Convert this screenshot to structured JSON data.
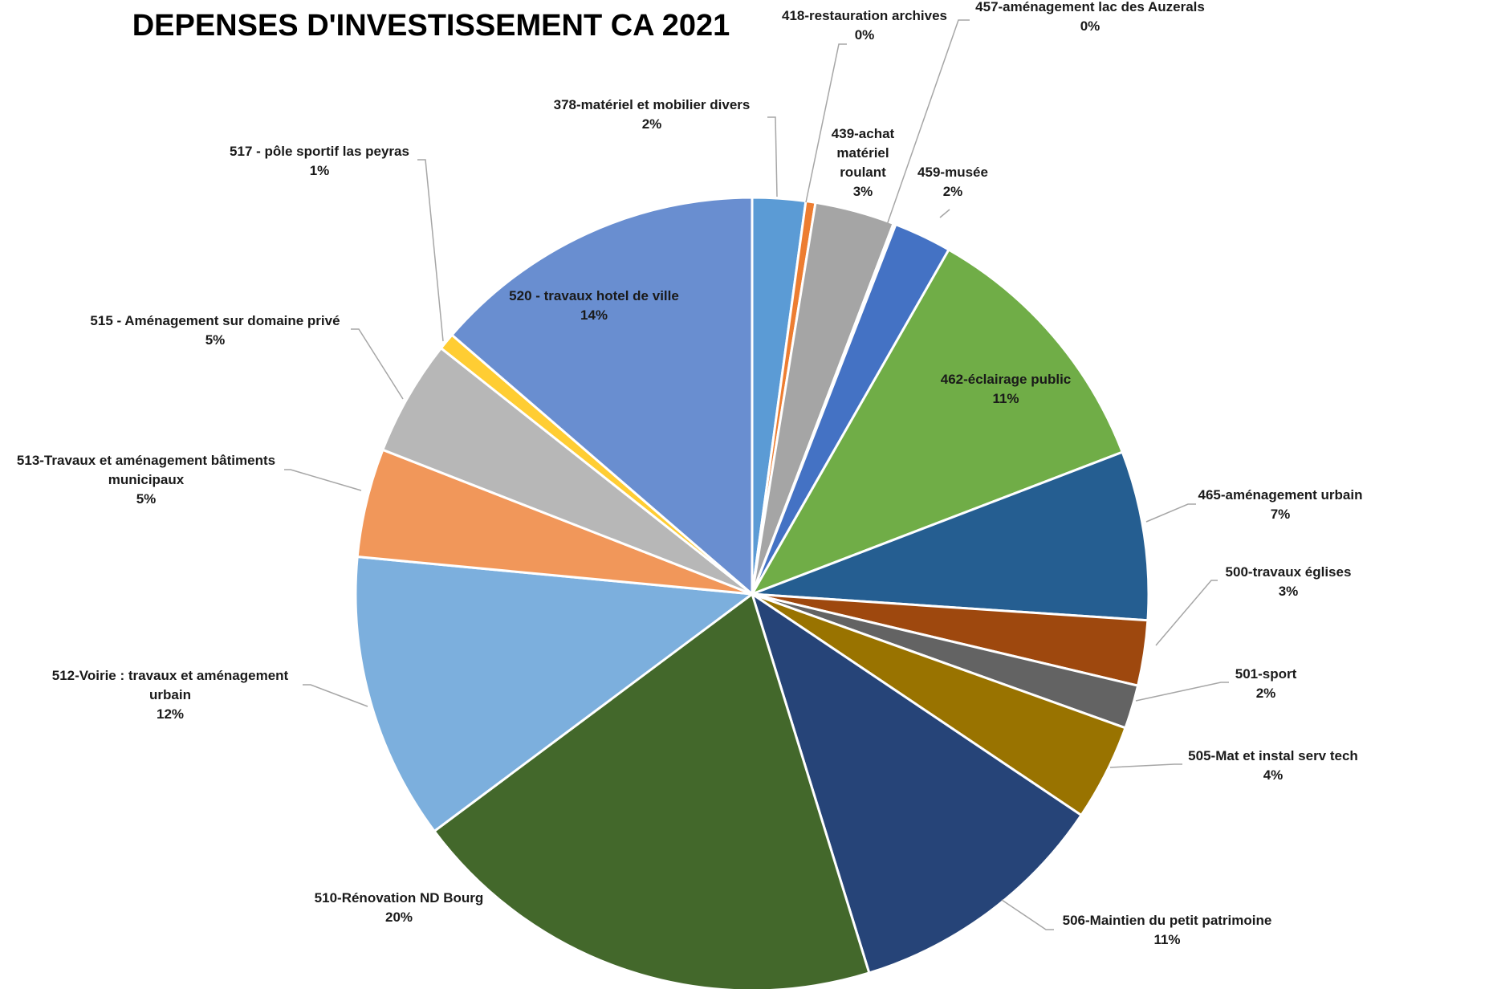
{
  "chart_data": {
    "type": "pie",
    "title": "DEPENSES D'INVESTISSEMENT CA 2021",
    "slices": [
      {
        "name": "378-matériel et mobilier divers",
        "value": 2.2,
        "label_pct": "2%",
        "color": "#5b9bd5"
      },
      {
        "name": "418-restauration archives",
        "value": 0.4,
        "label_pct": "0%",
        "color": "#ed7d31"
      },
      {
        "name": "439-achat matériel roulant",
        "value": 3.3,
        "label_pct": "3%",
        "color": "#a5a5a5"
      },
      {
        "name": "457-aménagement lac des Auzerals",
        "value": 0.1,
        "label_pct": "0%",
        "color": "#ffc000"
      },
      {
        "name": "459-musée",
        "value": 2.4,
        "label_pct": "2%",
        "color": "#4472c4"
      },
      {
        "name": "462-éclairage public",
        "value": 11.1,
        "label_pct": "11%",
        "color": "#70ad47"
      },
      {
        "name": "465-aménagement urbain",
        "value": 7.0,
        "label_pct": "7%",
        "color": "#255e91"
      },
      {
        "name": "500-travaux églises",
        "value": 2.7,
        "label_pct": "3%",
        "color": "#9e480e"
      },
      {
        "name": "501-sport",
        "value": 1.8,
        "label_pct": "2%",
        "color": "#636363"
      },
      {
        "name": "505-Mat et instal serv tech",
        "value": 4.0,
        "label_pct": "4%",
        "color": "#997300"
      },
      {
        "name": "506-Maintien du petit patrimoine",
        "value": 11.0,
        "label_pct": "11%",
        "color": "#264478"
      },
      {
        "name": "510-Rénovation ND Bourg",
        "value": 19.9,
        "label_pct": "20%",
        "color": "#43682b"
      },
      {
        "name": "512-Voirie : travaux et aménagement urbain",
        "value": 11.9,
        "label_pct": "12%",
        "color": "#7cafdd"
      },
      {
        "name": "513-Travaux et aménagement bâtiments municipaux",
        "value": 4.5,
        "label_pct": "5%",
        "color": "#f1975a"
      },
      {
        "name": "515 - Aménagement sur domaine privé",
        "value": 4.8,
        "label_pct": "5%",
        "color": "#b7b7b7"
      },
      {
        "name": "517 - pôle sportif las peyras",
        "value": 0.7,
        "label_pct": "1%",
        "color": "#ffcd33"
      },
      {
        "name": "520 - travaux hotel de ville",
        "value": 13.9,
        "label_pct": "14%",
        "color": "#698ed0"
      }
    ],
    "label_lines": [
      [
        "378-matériel et mobilier divers",
        "2%"
      ],
      [
        "418-restauration archives",
        "0%"
      ],
      [
        "439-achat",
        "matériel",
        "roulant",
        "3%"
      ],
      [
        "457-aménagement lac des Auzerals",
        "0%"
      ],
      [
        "459-musée",
        "2%"
      ],
      [
        "462-éclairage public",
        "11%"
      ],
      [
        "465-aménagement urbain",
        "7%"
      ],
      [
        "500-travaux églises",
        "3%"
      ],
      [
        "501-sport",
        "2%"
      ],
      [
        "505-Mat et instal serv tech",
        "4%"
      ],
      [
        "506-Maintien du petit patrimoine",
        "11%"
      ],
      [
        "510-Rénovation ND Bourg",
        "20%"
      ],
      [
        "512-Voirie : travaux et aménagement",
        "urbain",
        "12%"
      ],
      [
        "513-Travaux et aménagement bâtiments",
        "municipaux",
        "5%"
      ],
      [
        "515 - Aménagement sur domaine privé",
        "5%"
      ],
      [
        "517 - pôle sportif las peyras",
        "1%"
      ],
      [
        "520 - travaux hotel de ville",
        "14%"
      ]
    ],
    "start_angle": "12 o'clock",
    "direction": "clockwise",
    "legend": "none"
  }
}
